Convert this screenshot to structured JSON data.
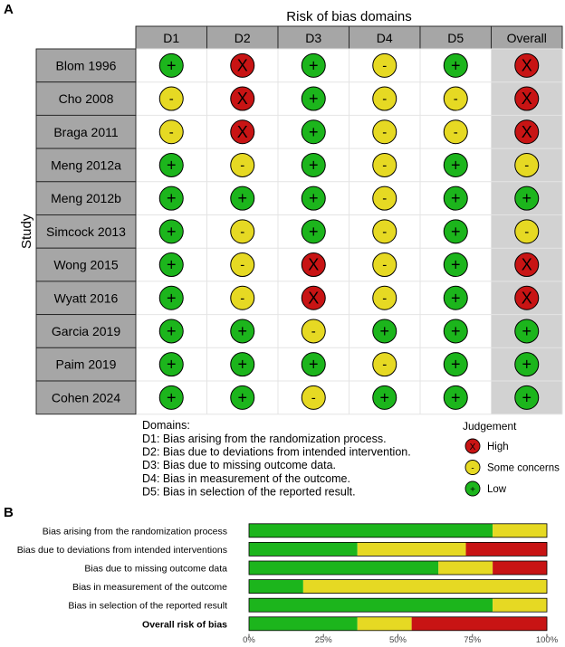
{
  "chart_data": [
    {
      "type": "table",
      "panel_label": "A",
      "title": "Risk of bias domains",
      "row_axis_label": "Study",
      "columns": [
        "D1",
        "D2",
        "D3",
        "D4",
        "D5",
        "Overall"
      ],
      "studies": [
        "Blom 1996",
        "Cho 2008",
        "Braga 2011",
        "Meng 2012a",
        "Meng 2012b",
        "Simcock 2013",
        "Wong 2015",
        "Wyatt 2016",
        "Garcia 2019",
        "Paim 2019",
        "Cohen 2024"
      ],
      "judgements": [
        [
          "low",
          "high",
          "low",
          "some",
          "low",
          "high"
        ],
        [
          "some",
          "high",
          "low",
          "some",
          "some",
          "high"
        ],
        [
          "some",
          "high",
          "low",
          "some",
          "some",
          "high"
        ],
        [
          "low",
          "some",
          "low",
          "some",
          "low",
          "some"
        ],
        [
          "low",
          "low",
          "low",
          "some",
          "low",
          "low"
        ],
        [
          "low",
          "some",
          "low",
          "some",
          "low",
          "some"
        ],
        [
          "low",
          "some",
          "high",
          "some",
          "low",
          "high"
        ],
        [
          "low",
          "some",
          "high",
          "some",
          "low",
          "high"
        ],
        [
          "low",
          "low",
          "some",
          "low",
          "low",
          "low"
        ],
        [
          "low",
          "low",
          "low",
          "some",
          "low",
          "low"
        ],
        [
          "low",
          "low",
          "some",
          "low",
          "low",
          "low"
        ]
      ],
      "symbols": {
        "high": "X",
        "some": "-",
        "low": "+"
      },
      "domains_title": "Domains:",
      "domain_descriptions": [
        "D1: Bias arising from the randomization process.",
        "D2: Bias due to deviations from intended intervention.",
        "D3: Bias due to missing outcome data.",
        "D4: Bias in measurement of the outcome.",
        "D5: Bias in selection of the reported result."
      ],
      "legend_title": "Judgement",
      "legend": [
        {
          "key": "high",
          "label": "High"
        },
        {
          "key": "some",
          "label": "Some concerns"
        },
        {
          "key": "low",
          "label": "Low"
        }
      ],
      "colors": {
        "high": "#c81414",
        "some": "#e6d923",
        "low": "#1cb51c",
        "overall_bg": "#d2d2d2",
        "label_bg": "#a6a6a6"
      }
    },
    {
      "type": "bar",
      "orientation": "horizontal",
      "stacked": true,
      "panel_label": "B",
      "categories": [
        "Bias arising from the randomization process",
        "Bias due to deviations from intended interventions",
        "Bias due to missing outcome data",
        "Bias in measurement of the outcome",
        "Bias in selection of the reported result",
        "Overall risk of bias"
      ],
      "bold_category": "Overall risk of bias",
      "series": [
        {
          "name": "Low",
          "color": "#1cb51c",
          "values": [
            81.8,
            36.4,
            63.6,
            18.2,
            81.8,
            36.4
          ]
        },
        {
          "name": "Some concerns",
          "color": "#e6d923",
          "values": [
            18.2,
            36.4,
            18.2,
            81.8,
            18.2,
            18.2
          ]
        },
        {
          "name": "High",
          "color": "#c81414",
          "values": [
            0,
            27.3,
            18.2,
            0,
            0,
            45.5
          ]
        }
      ],
      "xlim": [
        0,
        100
      ],
      "x_ticks": [
        0,
        25,
        50,
        75,
        100
      ],
      "x_tick_labels": [
        "0%",
        "25%",
        "50%",
        "75%",
        "100%"
      ]
    }
  ]
}
